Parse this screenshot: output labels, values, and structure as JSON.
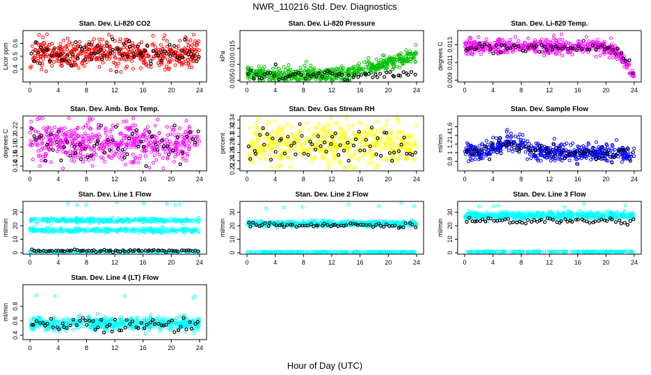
{
  "figure": {
    "title": "NWR_110216  Std. Dev. Diagnostics",
    "xlabel": "Hour of Day (UTC)"
  },
  "chart_data": [
    {
      "type": "scatter",
      "title": "Stan. Dev. Li-820 CO2",
      "xlabel": "",
      "ylabel": "Licor ppm",
      "xlim": [
        -1,
        25
      ],
      "ylim": [
        0.3,
        0.7
      ],
      "xticks": [
        0,
        4,
        8,
        12,
        16,
        20,
        24
      ],
      "yticks": [
        0.4,
        0.5,
        0.6
      ],
      "series": [
        {
          "name": "all",
          "color": "#ff0000",
          "n": 520,
          "base": 0.52,
          "spread": 0.055,
          "trend": "flat",
          "clip": [
            0.32,
            0.68
          ]
        },
        {
          "name": "hourly",
          "color": "#000000",
          "n": 80,
          "base": 0.52,
          "spread": 0.05,
          "trend": "flat",
          "clip": [
            0.38,
            0.66
          ]
        }
      ]
    },
    {
      "type": "scatter",
      "title": "Stan. Dev. Li-820 Pressure",
      "xlabel": "",
      "ylabel": "kPa",
      "xlim": [
        -1,
        25
      ],
      "ylim": [
        0.0045,
        0.0205
      ],
      "xticks": [
        0,
        4,
        8,
        12,
        16,
        20,
        24
      ],
      "yticks": [
        0.005,
        0.01,
        0.015
      ],
      "series": [
        {
          "name": "all",
          "color": "#00c000",
          "n": 520,
          "base": 0.0068,
          "spread": 0.0011,
          "trend": "rising",
          "clip": [
            0.005,
            0.019
          ]
        },
        {
          "name": "hourly",
          "color": "#000000",
          "n": 60,
          "base": 0.0066,
          "spread": 0.0008,
          "trend": "flat",
          "clip": [
            0.005,
            0.011
          ]
        }
      ]
    },
    {
      "type": "scatter",
      "title": "Stan. Dev. Li-820 Temp.",
      "xlabel": "",
      "ylabel": "degrees C",
      "xlim": [
        -1,
        25
      ],
      "ylim": [
        0.0088,
        0.0146
      ],
      "xticks": [
        0,
        4,
        8,
        12,
        16,
        20,
        24
      ],
      "yticks": [
        0.009,
        0.011,
        0.013
      ],
      "series": [
        {
          "name": "all",
          "color": "#ff00ff",
          "n": 520,
          "base": 0.0128,
          "spread": 0.0004,
          "trend": "late-drop",
          "clip": [
            0.0088,
            0.0145
          ]
        },
        {
          "name": "hourly",
          "color": "#000000",
          "n": 60,
          "base": 0.0127,
          "spread": 0.0003,
          "trend": "late-drop",
          "clip": [
            0.0089,
            0.0142
          ]
        }
      ]
    },
    {
      "type": "scatter",
      "title": "Stan. Dev. Amb. Box Temp.",
      "xlabel": "",
      "ylabel": "degrees C",
      "xlim": [
        -1,
        25
      ],
      "ylim": [
        0.13,
        0.245
      ],
      "xticks": [
        0,
        4,
        8,
        12,
        16,
        20,
        24
      ],
      "yticks": [
        0.14,
        0.16,
        0.18,
        0.2,
        0.22
      ],
      "series": [
        {
          "name": "all",
          "color": "#ff00ff",
          "n": 520,
          "base": 0.188,
          "spread": 0.022,
          "trend": "flat",
          "clip": [
            0.135,
            0.24
          ]
        },
        {
          "name": "hourly",
          "color": "#000000",
          "n": 60,
          "base": 0.182,
          "spread": 0.02,
          "trend": "flat",
          "clip": [
            0.14,
            0.225
          ]
        }
      ]
    },
    {
      "type": "scatter",
      "title": "Stan. Dev. Gas Stream RH",
      "xlabel": "",
      "ylabel": "percent",
      "xlim": [
        -1,
        25
      ],
      "ylim": [
        0.215,
        0.35
      ],
      "xticks": [
        0,
        4,
        8,
        12,
        16,
        20,
        24
      ],
      "yticks": [
        0.22,
        0.24,
        0.26,
        0.28,
        0.3,
        0.32,
        0.34
      ],
      "series": [
        {
          "name": "all",
          "color": "#ffff00",
          "n": 520,
          "base": 0.28,
          "spread": 0.025,
          "trend": "flat",
          "clip": [
            0.222,
            0.345
          ]
        },
        {
          "name": "hourly",
          "color": "#000000",
          "n": 60,
          "base": 0.278,
          "spread": 0.022,
          "trend": "flat",
          "clip": [
            0.24,
            0.33
          ]
        }
      ]
    },
    {
      "type": "scatter",
      "title": "Stan. Dev. Sample Flow",
      "xlabel": "",
      "ylabel": "ml/min",
      "xlim": [
        -1,
        25
      ],
      "ylim": [
        0.58,
        1.85
      ],
      "xticks": [
        0,
        4,
        8,
        12,
        16,
        20,
        24
      ],
      "yticks": [
        0.8,
        1.0,
        1.2,
        1.4,
        1.6
      ],
      "series": [
        {
          "name": "all",
          "color": "#0000ff",
          "n": 520,
          "base": 1.0,
          "spread": 0.1,
          "trend": "mid-bump",
          "clip": [
            0.64,
            1.8
          ]
        },
        {
          "name": "hourly",
          "color": "#000000",
          "n": 60,
          "base": 1.0,
          "spread": 0.09,
          "trend": "mid-bump",
          "clip": [
            0.7,
            1.72
          ]
        }
      ]
    },
    {
      "type": "scatter",
      "title": "Stan. Dev. Line 1 Flow",
      "xlabel": "",
      "ylabel": "ml/min",
      "xlim": [
        -1,
        25
      ],
      "ylim": [
        -1,
        38
      ],
      "xticks": [
        0,
        4,
        8,
        12,
        16,
        20,
        24
      ],
      "yticks": [
        0,
        10,
        20,
        30
      ],
      "series": [
        {
          "name": "band-upper",
          "color": "#00ffff",
          "n": 320,
          "base": 24.0,
          "spread": 0.8,
          "trend": "flat",
          "clip": [
            20,
            28
          ]
        },
        {
          "name": "band-lower",
          "color": "#00ffff",
          "n": 280,
          "base": 16.5,
          "spread": 0.8,
          "trend": "flat",
          "clip": [
            12,
            20
          ]
        },
        {
          "name": "band-zero",
          "color": "#00ffff",
          "n": 200,
          "base": 1.0,
          "spread": 0.3,
          "trend": "flat",
          "clip": [
            0,
            3
          ]
        },
        {
          "name": "outliers",
          "color": "#00ffff",
          "n": 8,
          "base": 36.0,
          "spread": 0.5,
          "trend": "flat",
          "clip": [
            34,
            37.5
          ]
        },
        {
          "name": "hourly",
          "color": "#000000",
          "n": 70,
          "base": 1.5,
          "spread": 0.4,
          "trend": "flat",
          "clip": [
            0.5,
            3
          ]
        }
      ]
    },
    {
      "type": "scatter",
      "title": "Stan. Dev. Line 2 Flow",
      "xlabel": "",
      "ylabel": "ml/min",
      "xlim": [
        -1,
        25
      ],
      "ylim": [
        -1,
        38
      ],
      "xticks": [
        0,
        4,
        8,
        12,
        16,
        20,
        24
      ],
      "yticks": [
        0,
        10,
        20,
        30
      ],
      "series": [
        {
          "name": "band",
          "color": "#00ffff",
          "n": 480,
          "base": 21.5,
          "spread": 1.0,
          "trend": "flat",
          "clip": [
            17,
            26
          ]
        },
        {
          "name": "band-zero",
          "color": "#00ffff",
          "n": 220,
          "base": 0.6,
          "spread": 0.2,
          "trend": "flat",
          "clip": [
            0,
            1.5
          ]
        },
        {
          "name": "outliers",
          "color": "#00ffff",
          "n": 7,
          "base": 34.0,
          "spread": 2.0,
          "trend": "flat",
          "clip": [
            28,
            37
          ]
        },
        {
          "name": "hourly",
          "color": "#000000",
          "n": 60,
          "base": 20.5,
          "spread": 0.8,
          "trend": "flat",
          "clip": [
            13,
            27
          ]
        }
      ]
    },
    {
      "type": "scatter",
      "title": "Stan. Dev. Line 3 Flow",
      "xlabel": "",
      "ylabel": "ml/min",
      "xlim": [
        -1,
        25
      ],
      "ylim": [
        -1,
        38
      ],
      "xticks": [
        0,
        4,
        8,
        12,
        16,
        20,
        24
      ],
      "yticks": [
        0,
        10,
        20,
        30
      ],
      "series": [
        {
          "name": "band",
          "color": "#00ffff",
          "n": 520,
          "base": 27.5,
          "spread": 1.3,
          "trend": "flat",
          "clip": [
            21,
            33
          ]
        },
        {
          "name": "band-zero",
          "color": "#00ffff",
          "n": 220,
          "base": 0.8,
          "spread": 0.2,
          "trend": "flat",
          "clip": [
            0,
            1.6
          ]
        },
        {
          "name": "outliers",
          "color": "#00ffff",
          "n": 6,
          "base": 35.0,
          "spread": 1.0,
          "trend": "flat",
          "clip": [
            8,
            37
          ]
        },
        {
          "name": "hourly",
          "color": "#000000",
          "n": 60,
          "base": 23.5,
          "spread": 1.0,
          "trend": "flat",
          "clip": [
            13,
            33
          ]
        }
      ]
    },
    {
      "type": "scatter",
      "title": "Stan. Dev. Line 4 (LT) Flow",
      "xlabel": "",
      "ylabel": "ml/min",
      "xlim": [
        -1,
        25
      ],
      "ylim": [
        0.34,
        1.1
      ],
      "xticks": [
        0,
        4,
        8,
        12,
        16,
        20,
        24
      ],
      "yticks": [
        0.4,
        0.6,
        0.8
      ],
      "series": [
        {
          "name": "all",
          "color": "#00ffff",
          "n": 520,
          "base": 0.56,
          "spread": 0.045,
          "trend": "flat",
          "clip": [
            0.38,
            1.06
          ]
        },
        {
          "name": "outliers",
          "color": "#00ffff",
          "n": 5,
          "base": 0.95,
          "spread": 0.06,
          "trend": "flat",
          "clip": [
            0.8,
            1.06
          ]
        },
        {
          "name": "hourly",
          "color": "#000000",
          "n": 60,
          "base": 0.55,
          "spread": 0.05,
          "trend": "flat",
          "clip": [
            0.44,
            0.72
          ]
        }
      ]
    }
  ]
}
